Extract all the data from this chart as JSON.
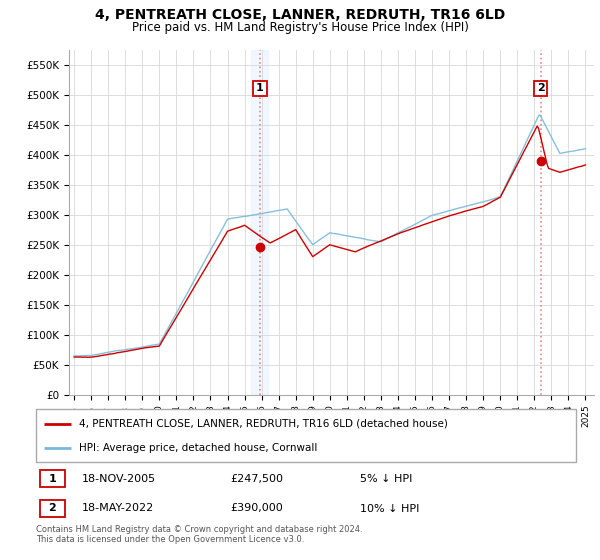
{
  "title": "4, PENTREATH CLOSE, LANNER, REDRUTH, TR16 6LD",
  "subtitle": "Price paid vs. HM Land Registry's House Price Index (HPI)",
  "legend_line1": "4, PENTREATH CLOSE, LANNER, REDRUTH, TR16 6LD (detached house)",
  "legend_line2": "HPI: Average price, detached house, Cornwall",
  "sale1_date": "18-NOV-2005",
  "sale1_price": "£247,500",
  "sale1_note": "5% ↓ HPI",
  "sale2_date": "18-MAY-2022",
  "sale2_price": "£390,000",
  "sale2_note": "10% ↓ HPI",
  "footer": "Contains HM Land Registry data © Crown copyright and database right 2024.\nThis data is licensed under the Open Government Licence v3.0.",
  "hpi_color": "#7ab8d9",
  "price_color": "#cc0000",
  "sale1_year": 2005.9,
  "sale1_value": 247500,
  "sale2_year": 2022.38,
  "sale2_value": 390000,
  "ylim_min": 0,
  "ylim_max": 575000,
  "xlim_min": 1994.7,
  "xlim_max": 2025.5,
  "grid_color": "#d8d8d8",
  "shade_color": "#ddeeff",
  "vline_color": "#d88080"
}
